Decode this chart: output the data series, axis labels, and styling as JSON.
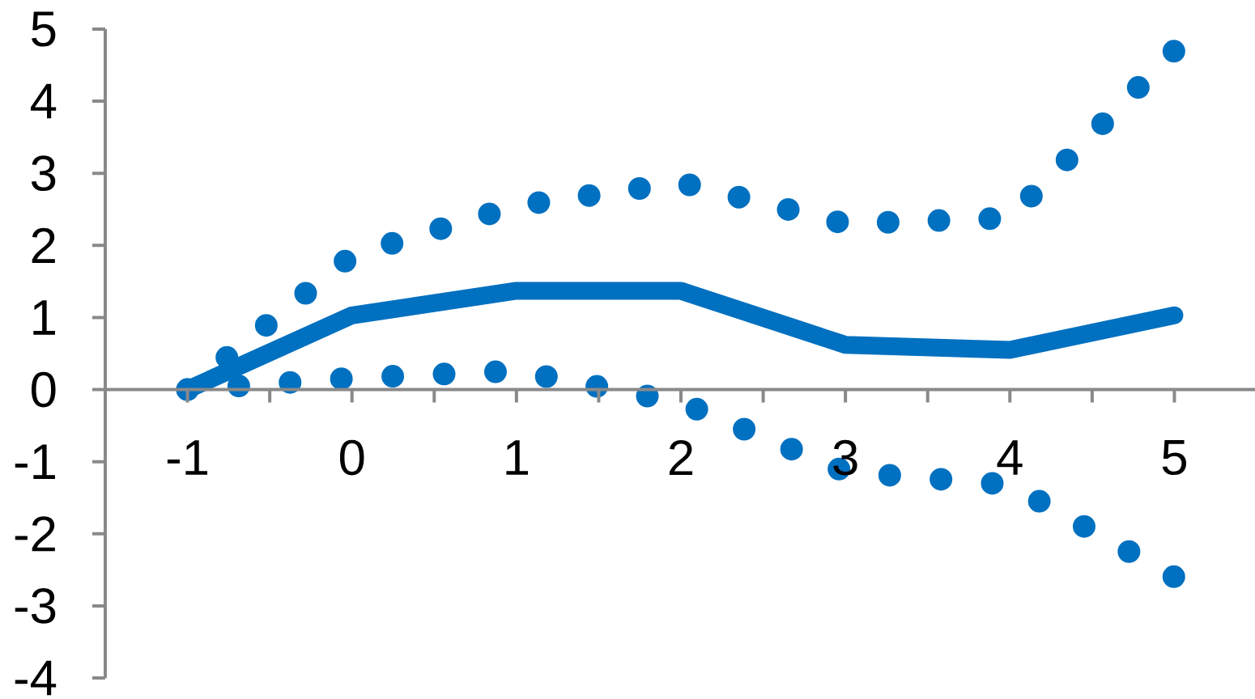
{
  "chart_data": {
    "type": "line",
    "categories": [
      "-1",
      "0",
      "1",
      "2",
      "3",
      "4",
      "5"
    ],
    "series": [
      {
        "color": "#0070c0",
        "line_style": "solid",
        "values": [
          0,
          1.03,
          1.37,
          1.37,
          0.62,
          0.55,
          1.03
        ]
      },
      {
        "color": "#0070c0",
        "line_style": "dotted",
        "values": [
          0,
          1.86,
          2.55,
          2.87,
          2.3,
          2.38,
          4.7
        ]
      },
      {
        "color": "#0070c0",
        "line_style": "dotted",
        "values": [
          0,
          0.16,
          0.26,
          -0.18,
          -1.14,
          -1.32,
          -2.6
        ]
      }
    ],
    "ylim": [
      -4,
      5
    ],
    "yticks": [
      -4,
      -3,
      -2,
      -1,
      0,
      1,
      2,
      3,
      4,
      5
    ]
  }
}
